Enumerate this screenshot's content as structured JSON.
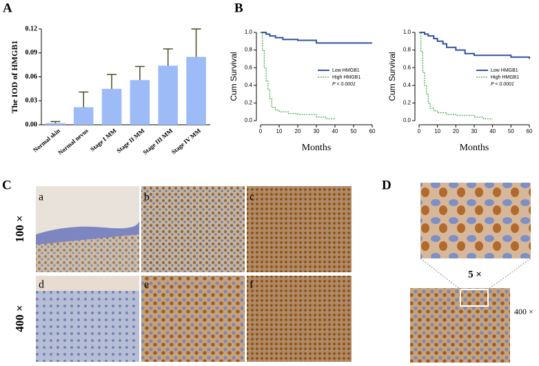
{
  "chart_data": [
    {
      "type": "bar",
      "ylabel": "The IOD of HMGB1",
      "categories": [
        "Normal skin",
        "Normal nevus",
        "Stage I MM",
        "Stage II MM",
        "Stage III MM",
        "Stage IV MM"
      ],
      "values": [
        0.002,
        0.022,
        0.045,
        0.056,
        0.074,
        0.085
      ],
      "errors": [
        0.002,
        0.019,
        0.018,
        0.017,
        0.021,
        0.035
      ],
      "color": "#9dbcf7",
      "error_color": "#4b4a22",
      "ylim": [
        0,
        0.12
      ],
      "yticks": [
        {
          "value": 0,
          "label": "0.00"
        },
        0.03,
        0.06,
        0.09,
        0.12
      ]
    },
    {
      "type": "line",
      "ylabel": "Cum Survival",
      "xlabel": "Months",
      "annotation": "P < 0.0001",
      "xlim": [
        0,
        60
      ],
      "xticks": [
        0,
        10,
        20,
        30,
        40,
        50,
        60
      ],
      "ylim": [
        0,
        1
      ],
      "yticks": [
        {
          "value": 0,
          "label": "0.0"
        },
        0.2,
        0.4,
        0.6,
        0.8,
        {
          "value": 1,
          "label": "1.0"
        }
      ],
      "series": [
        {
          "name": "Low HMGB1",
          "color": "#3050a0",
          "x": [
            0,
            3,
            5,
            8,
            12,
            20,
            30,
            40,
            60
          ],
          "values": [
            1.0,
            0.98,
            0.96,
            0.94,
            0.92,
            0.91,
            0.88,
            0.88,
            0.88
          ]
        },
        {
          "name": "High HMGB1",
          "color": "#3aa53a",
          "dashed": true,
          "x": [
            0,
            1,
            2,
            3,
            4,
            5,
            6,
            8,
            10,
            15,
            20,
            30,
            35,
            40
          ],
          "values": [
            1.0,
            0.8,
            0.6,
            0.45,
            0.35,
            0.25,
            0.15,
            0.12,
            0.1,
            0.08,
            0.07,
            0.04,
            0.02,
            0.02
          ]
        }
      ]
    },
    {
      "type": "line",
      "ylabel": "Cum Survival",
      "xlabel": "Months",
      "annotation": "P < 0.0001",
      "xlim": [
        0,
        60
      ],
      "xticks": [
        0,
        10,
        20,
        30,
        40,
        50,
        60
      ],
      "ylim": [
        0,
        1
      ],
      "yticks": [
        {
          "value": 0,
          "label": "0.0"
        },
        0.2,
        0.4,
        0.6,
        0.8,
        {
          "value": 1,
          "label": "1.0"
        }
      ],
      "series": [
        {
          "name": "Low HMGB1",
          "color": "#3050a0",
          "x": [
            0,
            3,
            5,
            8,
            10,
            13,
            15,
            20,
            25,
            30,
            40,
            50,
            60
          ],
          "values": [
            1.0,
            0.98,
            0.96,
            0.93,
            0.9,
            0.87,
            0.83,
            0.8,
            0.76,
            0.74,
            0.74,
            0.72,
            0.7
          ]
        },
        {
          "name": "High HMGB1",
          "color": "#3aa53a",
          "dashed": true,
          "x": [
            0,
            1,
            2,
            3,
            4,
            5,
            6,
            8,
            10,
            15,
            20,
            30,
            35,
            40
          ],
          "values": [
            1.0,
            0.78,
            0.55,
            0.4,
            0.3,
            0.2,
            0.14,
            0.11,
            0.09,
            0.07,
            0.06,
            0.04,
            0.02,
            0.02
          ]
        }
      ]
    }
  ],
  "figure": {
    "panel_labels": [
      "A",
      "B",
      "C",
      "D"
    ],
    "micrograph_labels": [
      "a",
      "b",
      "c",
      "d",
      "e",
      "f"
    ],
    "magnifications": [
      "100 ×",
      "400 ×"
    ],
    "zoom_label": "5 ×",
    "inset_magnification": "400 ×"
  }
}
